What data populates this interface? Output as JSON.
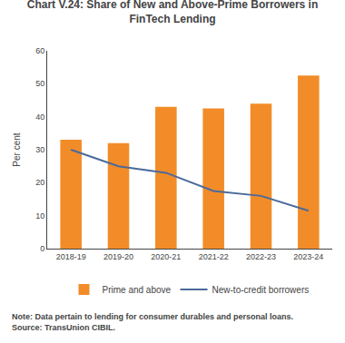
{
  "chart_data": {
    "type": "bar",
    "title": "Chart V.24: Share of New and Above-Prime Borrowers in\nFinTech Lending",
    "categories": [
      "2018-19",
      "2019-20",
      "2020-21",
      "2021-22",
      "2022-23",
      "2023-24"
    ],
    "series": [
      {
        "name": "Prime and above",
        "type": "bar",
        "color": "#F28C28",
        "values": [
          33,
          32,
          43,
          42.5,
          44,
          52.5
        ]
      },
      {
        "name": "New-to-credit borrowers",
        "type": "line",
        "color": "#4B6A9B",
        "values": [
          30,
          25,
          23,
          17.5,
          16,
          11.5
        ]
      }
    ],
    "ylabel": "Per cent",
    "ylim": [
      0,
      60
    ],
    "yticks": [
      0,
      10,
      20,
      30,
      40,
      50,
      60
    ],
    "grid": false,
    "legend": "bottom",
    "annotations": [
      "Note: Data pertain to lending for consumer durables and personal loans.\nSource: TransUnion CIBIL."
    ]
  }
}
